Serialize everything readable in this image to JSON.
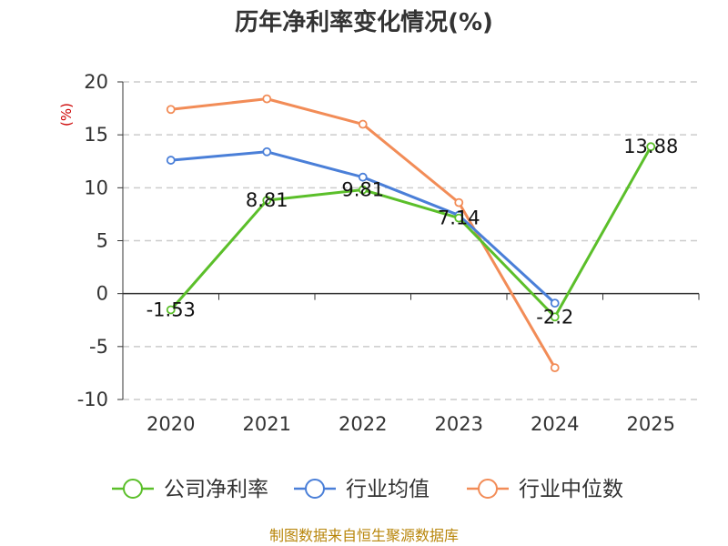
{
  "chart_data": {
    "type": "line",
    "title": "历年净利率变化情况(%)",
    "ylabel": "(%)",
    "xlabel": "",
    "categories": [
      "2020",
      "2021",
      "2022",
      "2023",
      "2024",
      "2025"
    ],
    "ylim": [
      -10,
      20
    ],
    "yticks": [
      20,
      15,
      10,
      5,
      0,
      -5,
      -10
    ],
    "grid": true,
    "legend_position": "bottom",
    "series": [
      {
        "name": "公司净利率",
        "color": "#5bbf2a",
        "values": [
          -1.53,
          8.81,
          9.81,
          7.14,
          -2.2,
          13.88
        ],
        "labels": [
          "-1.53",
          "8.81",
          "9.81",
          "7.14",
          "-2.2",
          "13.88"
        ]
      },
      {
        "name": "行业均值",
        "color": "#4a7fd8",
        "values": [
          12.6,
          13.4,
          11.0,
          7.4,
          -0.9,
          null
        ]
      },
      {
        "name": "行业中位数",
        "color": "#f28c57",
        "values": [
          17.4,
          18.4,
          16.0,
          8.6,
          -7.0,
          null
        ]
      }
    ],
    "source": "制图数据来自恒生聚源数据库"
  }
}
